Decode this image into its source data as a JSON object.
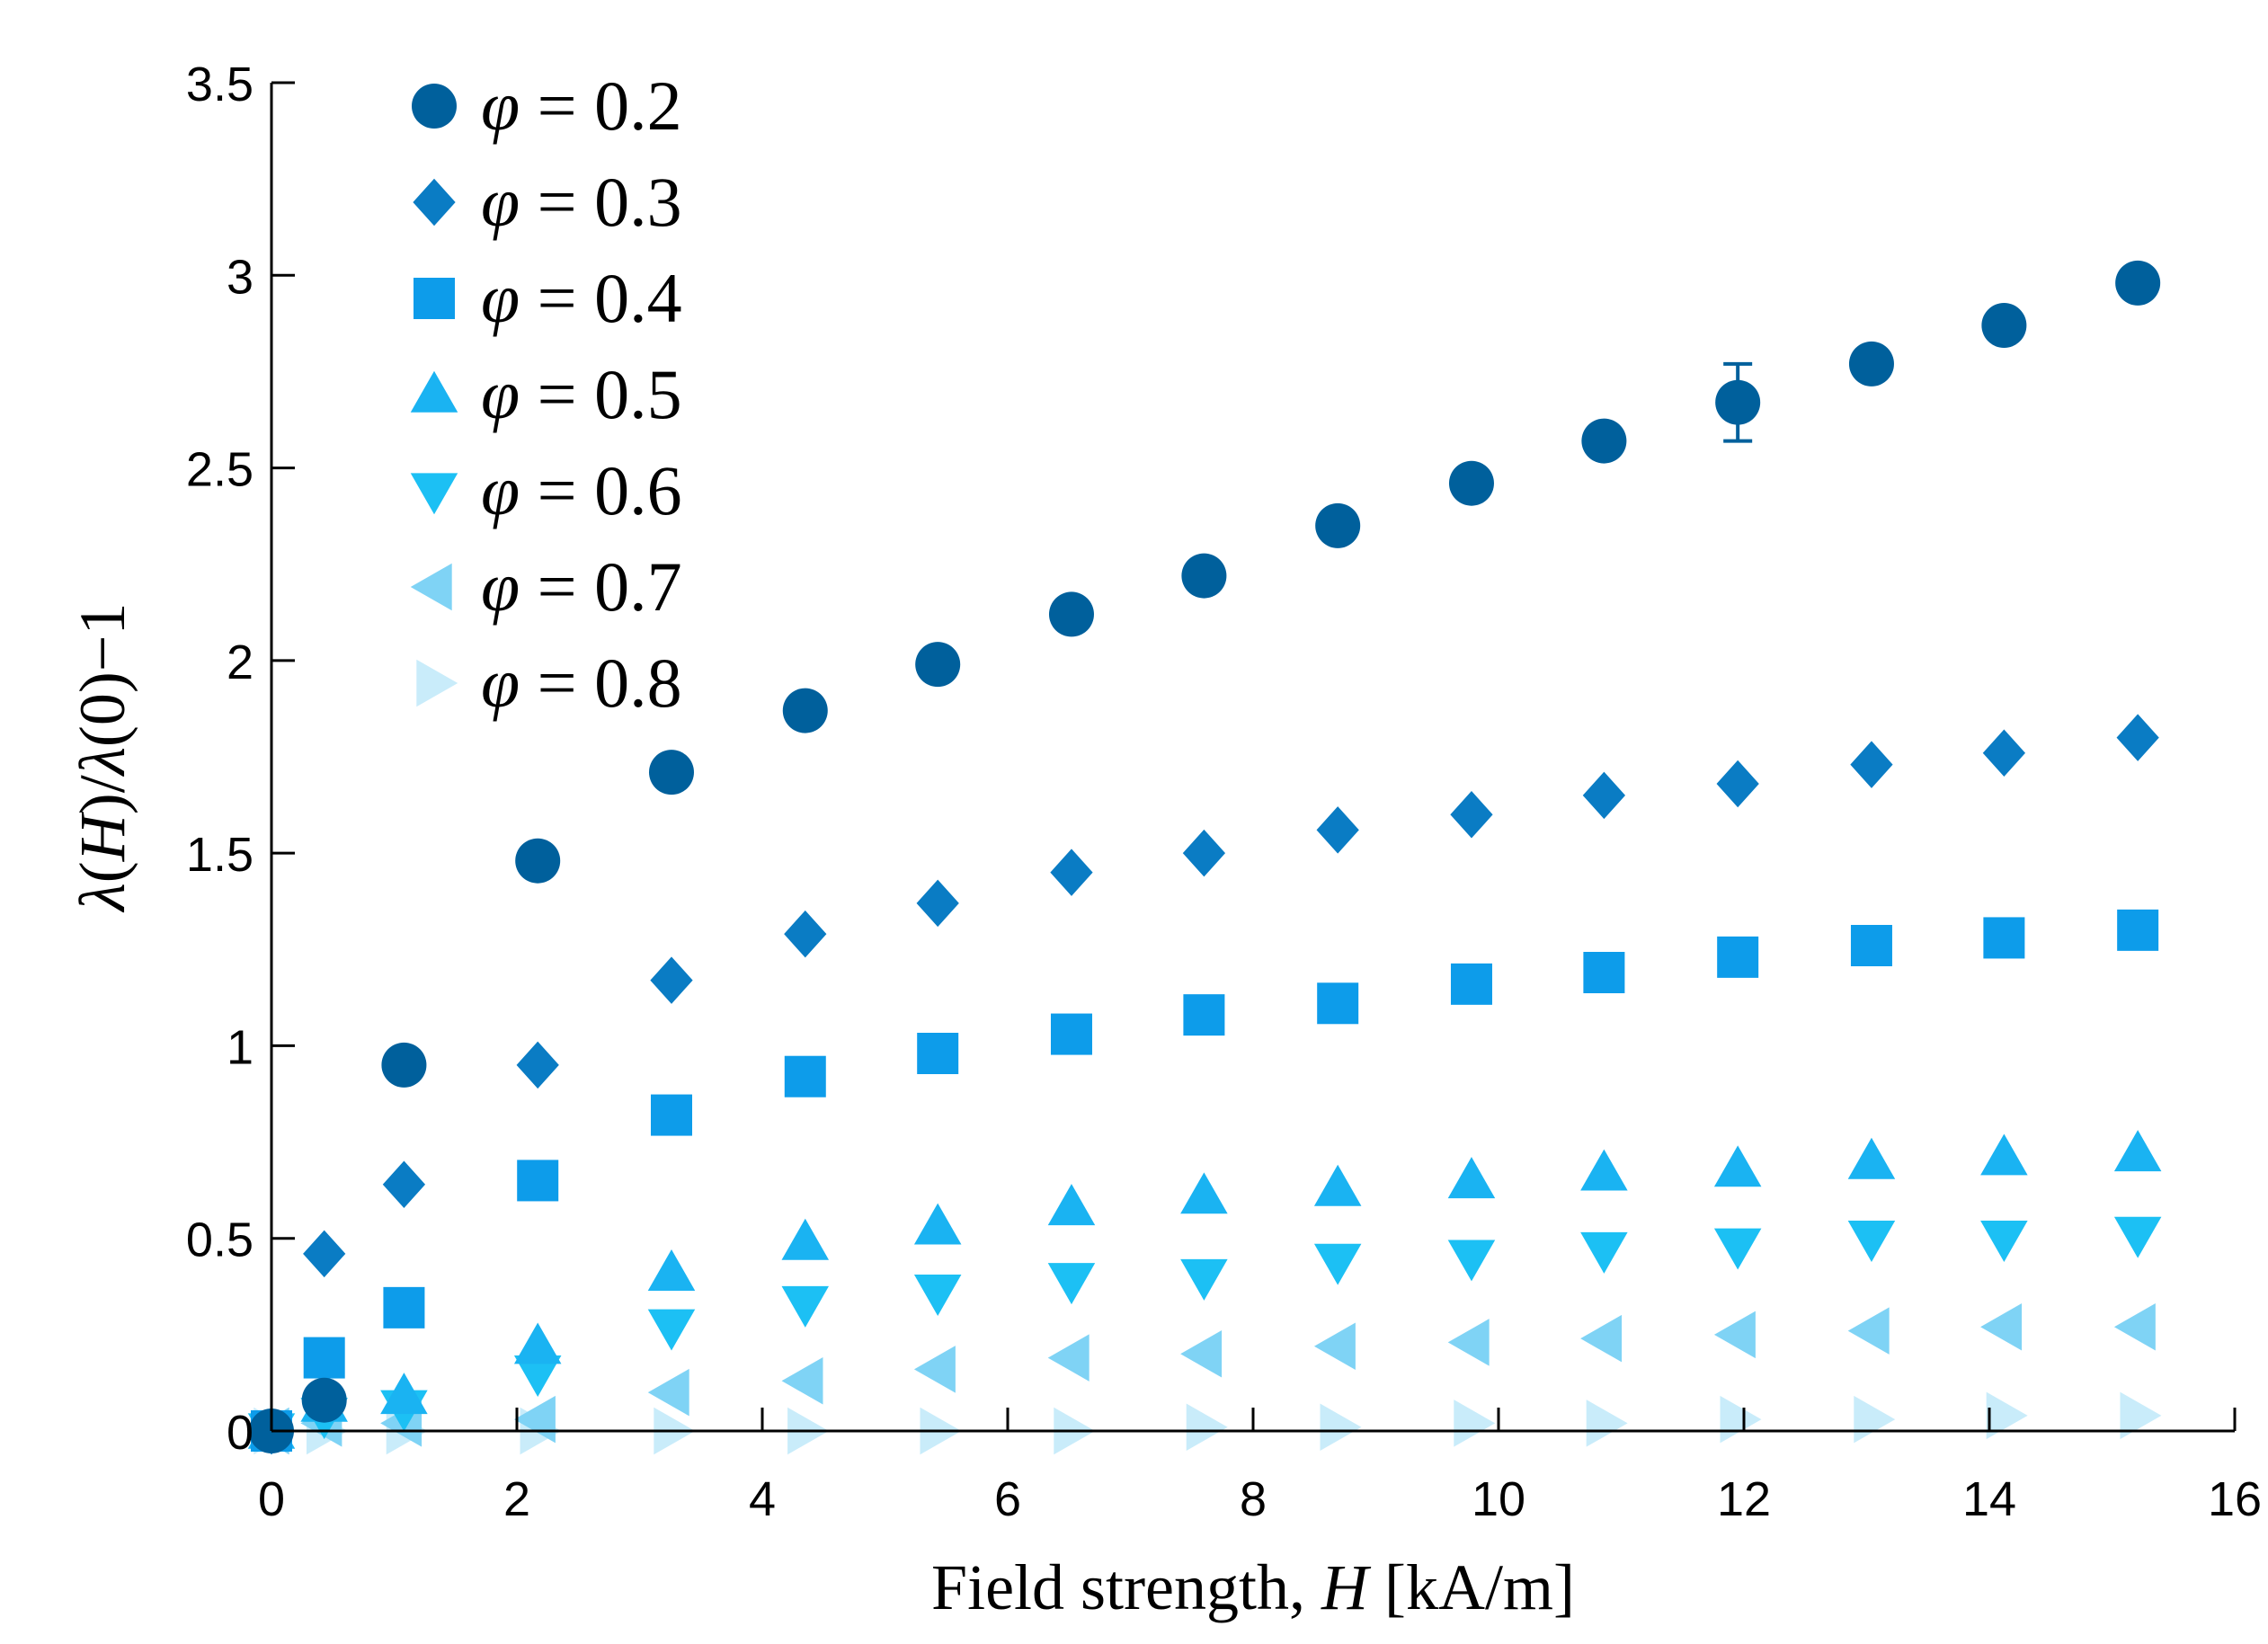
{
  "chart_data": {
    "type": "scatter",
    "title": "",
    "xlabel": {
      "prefix": "Field strength, ",
      "var": "H",
      "unit": " [kA/m]"
    },
    "ylabel": {
      "l1": "λ",
      "p1": "(",
      "h": "H",
      "p2": ")/",
      "l2": "λ",
      "rest": "(0)−1"
    },
    "xlim": [
      0,
      16
    ],
    "ylim": [
      0,
      3.5
    ],
    "xticks": [
      "0",
      "2",
      "4",
      "6",
      "8",
      "10",
      "12",
      "14",
      "16"
    ],
    "yticks": [
      "0",
      "0.5",
      "1",
      "1.5",
      "2",
      "2.5",
      "3",
      "3.5"
    ],
    "grid": false,
    "legend_position": "top-left",
    "x": [
      0,
      0.43,
      1.08,
      2.17,
      3.26,
      4.35,
      5.43,
      6.52,
      7.6,
      8.69,
      9.78,
      10.86,
      11.95,
      13.04,
      14.12,
      15.21
    ],
    "series": [
      {
        "name_var": "φ",
        "name_value": " = 0.2",
        "marker": "circle",
        "color": "#00609c",
        "values": [
          0,
          0.08,
          0.95,
          1.48,
          1.71,
          1.87,
          1.99,
          2.12,
          2.22,
          2.35,
          2.46,
          2.57,
          2.67,
          2.77,
          2.87,
          2.98
        ],
        "error": [
          0,
          0,
          0,
          0,
          0,
          0,
          0,
          0,
          0,
          0,
          0,
          0,
          0.1,
          0,
          0,
          0
        ]
      },
      {
        "name_var": "φ",
        "name_value": " = 0.3",
        "marker": "diamond",
        "color": "#0a7cc4",
        "values": [
          0,
          0.46,
          0.64,
          0.95,
          1.17,
          1.29,
          1.37,
          1.45,
          1.5,
          1.56,
          1.6,
          1.65,
          1.68,
          1.73,
          1.76,
          1.8
        ]
      },
      {
        "name_var": "φ",
        "name_value": " = 0.4",
        "marker": "square",
        "color": "#0d9cea",
        "values": [
          0,
          0.19,
          0.32,
          0.65,
          0.82,
          0.92,
          0.98,
          1.03,
          1.08,
          1.11,
          1.16,
          1.19,
          1.23,
          1.26,
          1.28,
          1.3
        ]
      },
      {
        "name_var": "φ",
        "name_value": " = 0.5",
        "marker": "triangle-up",
        "color": "#1ab3f2",
        "values": [
          0,
          0.07,
          0.09,
          0.22,
          0.41,
          0.49,
          0.53,
          0.58,
          0.61,
          0.63,
          0.65,
          0.67,
          0.68,
          0.7,
          0.71,
          0.72
        ]
      },
      {
        "name_var": "φ",
        "name_value": " = 0.6",
        "marker": "triangle-down",
        "color": "#1cc0f4",
        "values": [
          0,
          0.04,
          0.06,
          0.15,
          0.27,
          0.33,
          0.36,
          0.39,
          0.4,
          0.44,
          0.45,
          0.47,
          0.48,
          0.5,
          0.5,
          0.51
        ]
      },
      {
        "name_var": "φ",
        "name_value": " = 0.7",
        "marker": "triangle-left",
        "color": "#7fd3f5",
        "values": [
          0,
          0.02,
          0.02,
          0.03,
          0.1,
          0.13,
          0.16,
          0.19,
          0.2,
          0.22,
          0.23,
          0.24,
          0.25,
          0.26,
          0.27,
          0.27
        ]
      },
      {
        "name_var": "φ",
        "name_value": " = 0.8",
        "marker": "triangle-right",
        "color": "#c9ecfa",
        "values": [
          0,
          0,
          0,
          0,
          0,
          0,
          0,
          0,
          0.01,
          0.01,
          0.02,
          0.02,
          0.03,
          0.03,
          0.04,
          0.04
        ]
      }
    ]
  }
}
